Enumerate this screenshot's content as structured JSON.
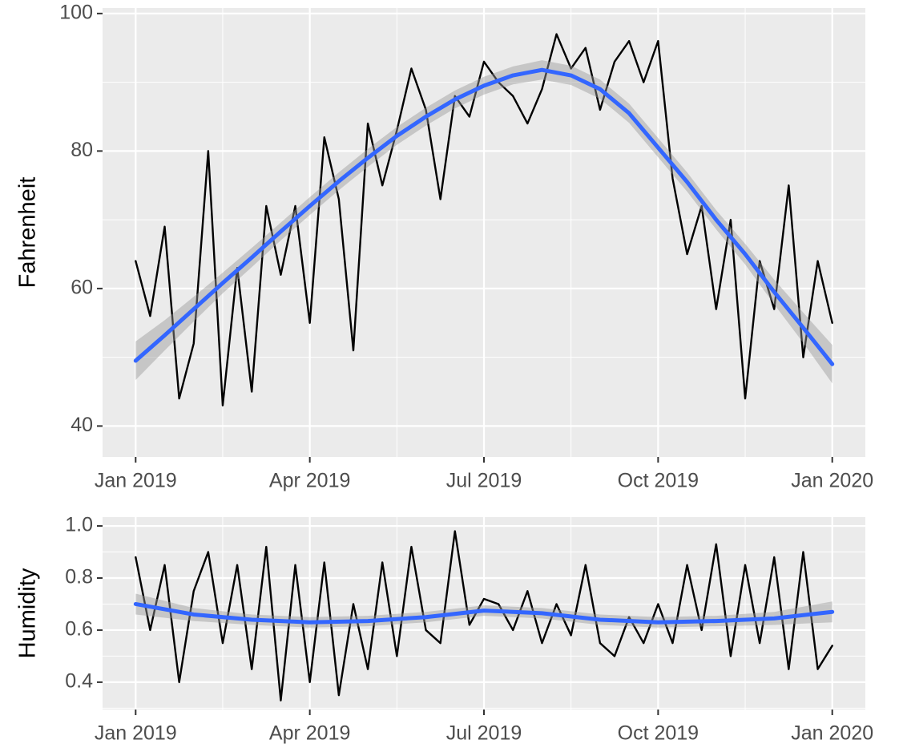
{
  "chart_data": [
    {
      "type": "line",
      "y_label": "Fahrenheit",
      "xlim": [
        -0.57,
        12.57
      ],
      "ylim": [
        35.5,
        100.8
      ],
      "xticks": [
        {
          "value": 0,
          "label": "Jan 2019"
        },
        {
          "value": 3,
          "label": "Apr 2019"
        },
        {
          "value": 6,
          "label": "Jul 2019"
        },
        {
          "value": 9,
          "label": "Oct 2019"
        },
        {
          "value": 12,
          "label": "Jan 2020"
        }
      ],
      "yticks": [
        40,
        60,
        80,
        100
      ],
      "grid": true,
      "series": [
        {
          "color": "#000000",
          "x": [
            0,
            0.25,
            0.5,
            0.75,
            1,
            1.25,
            1.5,
            1.75,
            2,
            2.25,
            2.5,
            2.75,
            3,
            3.25,
            3.5,
            3.75,
            4,
            4.25,
            4.5,
            4.75,
            5,
            5.25,
            5.5,
            5.75,
            6,
            6.25,
            6.5,
            6.75,
            7,
            7.25,
            7.5,
            7.75,
            8,
            8.25,
            8.5,
            8.75,
            9,
            9.25,
            9.5,
            9.75,
            10,
            10.25,
            10.5,
            10.75,
            11,
            11.25,
            11.5,
            11.75,
            12
          ],
          "values": [
            64,
            56,
            69,
            44,
            52,
            80,
            43,
            63,
            45,
            72,
            62,
            72,
            55,
            82,
            73,
            51,
            84,
            75,
            83,
            92,
            86,
            73,
            88,
            85,
            93,
            90,
            88,
            84,
            89,
            97,
            92,
            95,
            86,
            93,
            96,
            90,
            96,
            76,
            65,
            72,
            57,
            70,
            44,
            64,
            57,
            75,
            50,
            64,
            55
          ]
        },
        {
          "color": "#3366ff",
          "x": [
            0,
            0.5,
            1,
            1.5,
            2,
            2.5,
            3,
            3.5,
            4,
            4.5,
            5,
            5.5,
            6,
            6.5,
            7,
            7.5,
            8,
            8.5,
            9,
            9.5,
            10,
            10.5,
            11,
            11.5,
            12
          ],
          "values": [
            49.5,
            53.2,
            57,
            60.8,
            64.5,
            68.3,
            72,
            75.6,
            79,
            82.2,
            85,
            87.5,
            89.5,
            91,
            91.8,
            91,
            89,
            85.5,
            80.5,
            75.5,
            70,
            65,
            59.5,
            54.3,
            49
          ],
          "ci": [
            2.8,
            2.2,
            1.8,
            1.5,
            1.4,
            1.3,
            1.3,
            1.3,
            1.3,
            1.3,
            1.3,
            1.3,
            1.3,
            1.3,
            1.4,
            1.4,
            1.4,
            1.4,
            1.4,
            1.4,
            1.4,
            1.5,
            1.8,
            2.2,
            2.8
          ]
        }
      ]
    },
    {
      "type": "line",
      "y_label": "Humidity",
      "xlim": [
        -0.57,
        12.57
      ],
      "ylim": [
        0.295,
        1.034
      ],
      "xticks": [
        {
          "value": 0,
          "label": "Jan 2019"
        },
        {
          "value": 3,
          "label": "Apr 2019"
        },
        {
          "value": 6,
          "label": "Jul 2019"
        },
        {
          "value": 9,
          "label": "Oct 2019"
        },
        {
          "value": 12,
          "label": "Jan 2020"
        }
      ],
      "yticks": [
        0.4,
        0.6,
        0.8,
        {
          "value": 1,
          "label": "1.0"
        }
      ],
      "grid": true,
      "series": [
        {
          "color": "#000000",
          "x": [
            0,
            0.25,
            0.5,
            0.75,
            1,
            1.25,
            1.5,
            1.75,
            2,
            2.25,
            2.5,
            2.75,
            3,
            3.25,
            3.5,
            3.75,
            4,
            4.25,
            4.5,
            4.75,
            5,
            5.25,
            5.5,
            5.75,
            6,
            6.25,
            6.5,
            6.75,
            7,
            7.25,
            7.5,
            7.75,
            8,
            8.25,
            8.5,
            8.75,
            9,
            9.25,
            9.5,
            9.75,
            10,
            10.25,
            10.5,
            10.75,
            11,
            11.25,
            11.5,
            11.75,
            12
          ],
          "values": [
            0.88,
            0.6,
            0.85,
            0.4,
            0.75,
            0.9,
            0.55,
            0.85,
            0.45,
            0.92,
            0.33,
            0.85,
            0.4,
            0.86,
            0.35,
            0.7,
            0.45,
            0.86,
            0.5,
            0.92,
            0.6,
            0.55,
            0.98,
            0.62,
            0.72,
            0.7,
            0.6,
            0.75,
            0.55,
            0.7,
            0.58,
            0.85,
            0.55,
            0.5,
            0.65,
            0.55,
            0.7,
            0.55,
            0.85,
            0.6,
            0.93,
            0.5,
            0.85,
            0.55,
            0.88,
            0.45,
            0.9,
            0.45,
            0.54
          ]
        },
        {
          "color": "#3366ff",
          "x": [
            0,
            1,
            2,
            3,
            4,
            5,
            6,
            7,
            8,
            9,
            10,
            11,
            12
          ],
          "values": [
            0.7,
            0.66,
            0.64,
            0.63,
            0.635,
            0.65,
            0.675,
            0.665,
            0.64,
            0.63,
            0.635,
            0.645,
            0.67
          ],
          "ci": [
            0.04,
            0.025,
            0.02,
            0.02,
            0.02,
            0.02,
            0.02,
            0.02,
            0.02,
            0.02,
            0.02,
            0.025,
            0.04
          ]
        }
      ]
    }
  ]
}
